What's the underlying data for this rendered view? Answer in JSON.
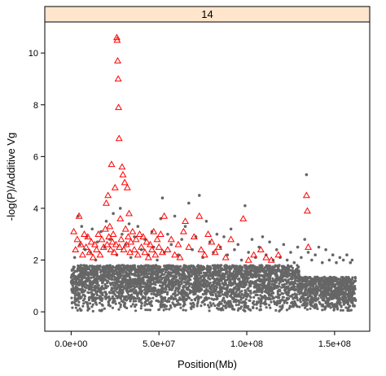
{
  "chart_data": {
    "type": "scatter",
    "title": "",
    "panel_label": "14",
    "xlabel": "Position(Mb)",
    "ylabel": "-log(P)/Additive Vg",
    "xlim": [
      -15000000.0,
      170000000.0
    ],
    "ylim": [
      -0.75,
      11.2
    ],
    "x_ticks": [
      {
        "value": 0,
        "label": "0.0e+00"
      },
      {
        "value": 50000000,
        "label": "5.0e+07"
      },
      {
        "value": 100000000,
        "label": "1.0e+08"
      },
      {
        "value": 150000000,
        "label": "1.5e+08"
      }
    ],
    "y_ticks": [
      {
        "value": 0,
        "label": "0"
      },
      {
        "value": 2,
        "label": "2"
      },
      {
        "value": 4,
        "label": "4"
      },
      {
        "value": 6,
        "label": "6"
      },
      {
        "value": 8,
        "label": "8"
      },
      {
        "value": 10,
        "label": "10"
      }
    ],
    "grid": false,
    "legend": "none",
    "colors": {
      "strip_fill": "#FFE5CC",
      "points": "#666666",
      "highlight": "#FF0000"
    },
    "series": [
      {
        "marker": "dot",
        "dense_band": {
          "x_range": [
            0,
            162000000
          ],
          "y_range": [
            0,
            1.8
          ]
        },
        "values": [
          [
            2000000,
            2.1
          ],
          [
            4000000,
            3.7
          ],
          [
            5000000,
            2.6
          ],
          [
            6000000,
            3.3
          ],
          [
            8000000,
            2.4
          ],
          [
            9000000,
            2.9
          ],
          [
            11000000,
            2.3
          ],
          [
            12000000,
            3.2
          ],
          [
            14000000,
            2.0
          ],
          [
            15000000,
            2.7
          ],
          [
            17000000,
            3.1
          ],
          [
            19000000,
            2.5
          ],
          [
            20000000,
            3.5
          ],
          [
            22000000,
            2.8
          ],
          [
            24000000,
            3.8
          ],
          [
            26000000,
            2.2
          ],
          [
            28000000,
            4.0
          ],
          [
            29000000,
            3.0
          ],
          [
            31000000,
            2.6
          ],
          [
            33000000,
            3.4
          ],
          [
            34000000,
            2.1
          ],
          [
            36000000,
            2.9
          ],
          [
            38000000,
            3.3
          ],
          [
            40000000,
            2.4
          ],
          [
            42000000,
            2.8
          ],
          [
            44000000,
            2.2
          ],
          [
            46000000,
            3.1
          ],
          [
            47000000,
            2.5
          ],
          [
            49000000,
            2.0
          ],
          [
            51000000,
            3.6
          ],
          [
            52000000,
            4.4
          ],
          [
            53000000,
            2.3
          ],
          [
            55000000,
            3.0
          ],
          [
            57000000,
            2.6
          ],
          [
            59000000,
            3.7
          ],
          [
            61000000,
            2.2
          ],
          [
            63000000,
            2.8
          ],
          [
            65000000,
            3.3
          ],
          [
            67000000,
            4.2
          ],
          [
            69000000,
            2.4
          ],
          [
            71000000,
            2.9
          ],
          [
            73000000,
            4.5
          ],
          [
            75000000,
            2.1
          ],
          [
            77000000,
            3.5
          ],
          [
            79000000,
            2.7
          ],
          [
            81000000,
            2.3
          ],
          [
            83000000,
            3.0
          ],
          [
            85000000,
            2.5
          ],
          [
            87000000,
            2.9
          ],
          [
            89000000,
            2.2
          ],
          [
            91000000,
            3.2
          ],
          [
            93000000,
            2.4
          ],
          [
            95000000,
            2.6
          ],
          [
            97000000,
            2.0
          ],
          [
            99000000,
            4.1
          ],
          [
            101000000,
            2.3
          ],
          [
            103000000,
            2.8
          ],
          [
            105000000,
            2.1
          ],
          [
            107000000,
            2.5
          ],
          [
            109000000,
            2.9
          ],
          [
            111000000,
            2.2
          ],
          [
            113000000,
            2.7
          ],
          [
            115000000,
            2.0
          ],
          [
            117000000,
            2.4
          ],
          [
            119000000,
            2.1
          ],
          [
            121000000,
            2.6
          ],
          [
            123000000,
            2.0
          ],
          [
            125000000,
            2.3
          ],
          [
            127000000,
            1.9
          ],
          [
            129000000,
            2.5
          ],
          [
            131000000,
            2.1
          ],
          [
            133000000,
            2.8
          ],
          [
            134000000,
            5.3
          ],
          [
            135000000,
            2.3
          ],
          [
            137000000,
            2.0
          ],
          [
            139000000,
            2.2
          ],
          [
            141000000,
            2.5
          ],
          [
            143000000,
            1.9
          ],
          [
            145000000,
            2.4
          ],
          [
            147000000,
            2.0
          ],
          [
            149000000,
            2.2
          ],
          [
            151000000,
            1.9
          ],
          [
            153000000,
            2.1
          ],
          [
            155000000,
            2.0
          ],
          [
            157000000,
            2.2
          ],
          [
            159000000,
            1.9
          ],
          [
            160000000,
            2.0
          ]
        ]
      },
      {
        "marker": "open-triangle",
        "values": [
          [
            1500000,
            3.1
          ],
          [
            2500000,
            2.4
          ],
          [
            3500000,
            2.8
          ],
          [
            4500000,
            3.7
          ],
          [
            5500000,
            2.6
          ],
          [
            6500000,
            2.2
          ],
          [
            7500000,
            3.0
          ],
          [
            8500000,
            2.5
          ],
          [
            9500000,
            2.9
          ],
          [
            10500000,
            2.3
          ],
          [
            11500000,
            2.7
          ],
          [
            12500000,
            2.1
          ],
          [
            13500000,
            2.6
          ],
          [
            14500000,
            2.4
          ],
          [
            15500000,
            3.0
          ],
          [
            16500000,
            2.2
          ],
          [
            17500000,
            2.8
          ],
          [
            18500000,
            2.5
          ],
          [
            19500000,
            3.2
          ],
          [
            20000000,
            4.2
          ],
          [
            20500000,
            2.6
          ],
          [
            21000000,
            4.5
          ],
          [
            21500000,
            2.9
          ],
          [
            22000000,
            3.3
          ],
          [
            22500000,
            2.4
          ],
          [
            23000000,
            5.7
          ],
          [
            23500000,
            2.7
          ],
          [
            24000000,
            3.0
          ],
          [
            24500000,
            2.3
          ],
          [
            25000000,
            4.8
          ],
          [
            25500000,
            2.6
          ],
          [
            26000000,
            10.6
          ],
          [
            26200000,
            10.5
          ],
          [
            26500000,
            9.7
          ],
          [
            26800000,
            9.0
          ],
          [
            27000000,
            7.9
          ],
          [
            27300000,
            6.7
          ],
          [
            27500000,
            2.5
          ],
          [
            28000000,
            3.6
          ],
          [
            28500000,
            2.8
          ],
          [
            29000000,
            5.6
          ],
          [
            29500000,
            5.3
          ],
          [
            30000000,
            2.4
          ],
          [
            30500000,
            5.0
          ],
          [
            31000000,
            3.2
          ],
          [
            31500000,
            2.6
          ],
          [
            32000000,
            4.8
          ],
          [
            32500000,
            2.9
          ],
          [
            33000000,
            3.8
          ],
          [
            33500000,
            2.3
          ],
          [
            34000000,
            2.7
          ],
          [
            35000000,
            3.1
          ],
          [
            36000000,
            2.4
          ],
          [
            37000000,
            2.8
          ],
          [
            38000000,
            2.2
          ],
          [
            39000000,
            3.0
          ],
          [
            40000000,
            2.5
          ],
          [
            41000000,
            2.9
          ],
          [
            42000000,
            2.3
          ],
          [
            43000000,
            2.7
          ],
          [
            44000000,
            2.1
          ],
          [
            45000000,
            2.6
          ],
          [
            46000000,
            2.4
          ],
          [
            47000000,
            3.1
          ],
          [
            48000000,
            2.2
          ],
          [
            49000000,
            2.8
          ],
          [
            50000000,
            2.5
          ],
          [
            51000000,
            3.0
          ],
          [
            52000000,
            2.3
          ],
          [
            53000000,
            3.7
          ],
          [
            55000000,
            2.4
          ],
          [
            57000000,
            2.8
          ],
          [
            59000000,
            2.2
          ],
          [
            61000000,
            2.6
          ],
          [
            62000000,
            2.1
          ],
          [
            64000000,
            3.1
          ],
          [
            65000000,
            3.5
          ],
          [
            67000000,
            2.5
          ],
          [
            70000000,
            2.9
          ],
          [
            73000000,
            3.7
          ],
          [
            74000000,
            2.4
          ],
          [
            76000000,
            2.2
          ],
          [
            78000000,
            3.0
          ],
          [
            80000000,
            2.7
          ],
          [
            82000000,
            2.3
          ],
          [
            84000000,
            2.5
          ],
          [
            88000000,
            2.1
          ],
          [
            91000000,
            2.8
          ],
          [
            98000000,
            3.6
          ],
          [
            101000000,
            2.0
          ],
          [
            104000000,
            2.2
          ],
          [
            108000000,
            2.4
          ],
          [
            111000000,
            2.1
          ],
          [
            114000000,
            2.0
          ],
          [
            118000000,
            2.2
          ],
          [
            134000000,
            4.5
          ],
          [
            134500000,
            3.9
          ],
          [
            135000000,
            2.5
          ]
        ]
      }
    ]
  }
}
